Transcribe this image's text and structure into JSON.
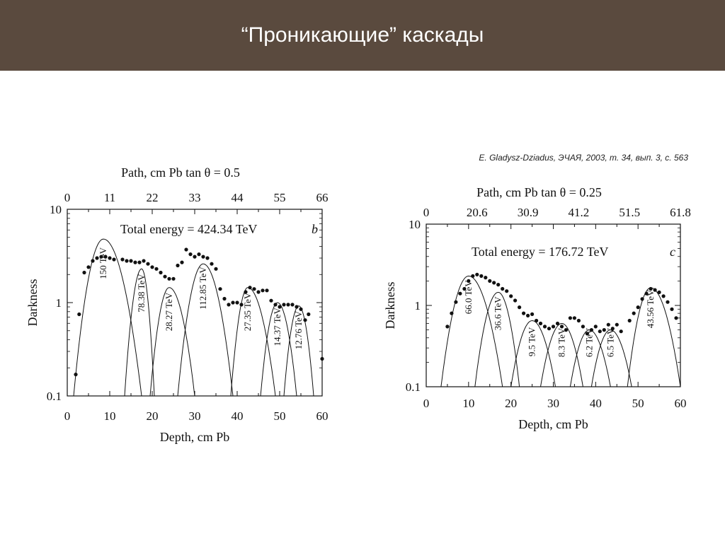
{
  "slide": {
    "title": "“Проникающие” каскады",
    "citation": "E. Gladysz-Dziadus, ЭЧАЯ, 2003, т. 34, вып. 3, с. 563"
  },
  "colors": {
    "header_bg": "#5a4a3e",
    "header_text": "#ffffff",
    "plot_ink": "#111111"
  },
  "chart_data": [
    {
      "type": "scatter",
      "panel_label": "b",
      "annotation": "Total energy = 424.34 TeV",
      "xlabel": "Depth, cm Pb",
      "ylabel": "Darkness",
      "top_axis_label": "Path, cm Pb   tan θ = 0.5",
      "xlim": [
        0,
        60
      ],
      "ylim": [
        0.1,
        10
      ],
      "y_scale": "log",
      "x_ticks": [
        "0",
        "10",
        "20",
        "30",
        "40",
        "50",
        "60"
      ],
      "top_ticks": [
        "0",
        "11",
        "22",
        "33",
        "44",
        "55",
        "66"
      ],
      "y_ticks": [
        "0.1",
        "1",
        "10"
      ],
      "points": [
        [
          2,
          0.17
        ],
        [
          2.8,
          0.75
        ],
        [
          4,
          2.1
        ],
        [
          5,
          2.4
        ],
        [
          6,
          2.8
        ],
        [
          7,
          3.0
        ],
        [
          8,
          3.1
        ],
        [
          9,
          3.1
        ],
        [
          10,
          3.0
        ],
        [
          11,
          2.9
        ],
        [
          13,
          2.9
        ],
        [
          14,
          2.8
        ],
        [
          15,
          2.8
        ],
        [
          16,
          2.7
        ],
        [
          17,
          2.7
        ],
        [
          18,
          2.8
        ],
        [
          19,
          2.6
        ],
        [
          20,
          2.4
        ],
        [
          21,
          2.3
        ],
        [
          22,
          2.1
        ],
        [
          23,
          1.9
        ],
        [
          24,
          1.8
        ],
        [
          25,
          1.8
        ],
        [
          26,
          2.5
        ],
        [
          27,
          2.7
        ],
        [
          28,
          3.7
        ],
        [
          29,
          3.3
        ],
        [
          30,
          3.1
        ],
        [
          31,
          3.3
        ],
        [
          32,
          3.1
        ],
        [
          33,
          3.0
        ],
        [
          34,
          2.6
        ],
        [
          35,
          2.3
        ],
        [
          36,
          1.4
        ],
        [
          37,
          1.1
        ],
        [
          38,
          0.95
        ],
        [
          39,
          1.0
        ],
        [
          40,
          1.0
        ],
        [
          41,
          0.95
        ],
        [
          42,
          1.3
        ],
        [
          43,
          1.45
        ],
        [
          44,
          1.4
        ],
        [
          45,
          1.3
        ],
        [
          46,
          1.35
        ],
        [
          47,
          1.35
        ],
        [
          48,
          1.05
        ],
        [
          49,
          0.95
        ],
        [
          50,
          0.9
        ],
        [
          51,
          0.95
        ],
        [
          52,
          0.95
        ],
        [
          53,
          0.95
        ],
        [
          54,
          0.9
        ],
        [
          55,
          0.85
        ],
        [
          56,
          0.65
        ],
        [
          56.8,
          0.75
        ],
        [
          60,
          0.25
        ]
      ],
      "showers": [
        {
          "label": "150 TeV",
          "peak_x": 8.5,
          "peak_y": 4.8,
          "start": 1.5,
          "end": 17.5
        },
        {
          "label": "78.38 TeV",
          "peak_x": 17.5,
          "peak_y": 2.3,
          "start": 13.5,
          "end": 20.5
        },
        {
          "label": "28.27 TeV",
          "peak_x": 24,
          "peak_y": 1.45,
          "start": 19.5,
          "end": 30
        },
        {
          "label": "112.85 TeV",
          "peak_x": 32,
          "peak_y": 2.6,
          "start": 26,
          "end": 39
        },
        {
          "label": "27.35 TeV",
          "peak_x": 42.5,
          "peak_y": 1.45,
          "start": 38.5,
          "end": 49
        },
        {
          "label": "14.37 TeV",
          "peak_x": 49.5,
          "peak_y": 1.0,
          "start": 45.5,
          "end": 54
        },
        {
          "label": "12.76 TeV",
          "peak_x": 54.5,
          "peak_y": 0.92,
          "start": 51,
          "end": 58
        }
      ]
    },
    {
      "type": "scatter",
      "panel_label": "c",
      "annotation": "Total energy = 176.72 TeV",
      "xlabel": "Depth, cm Pb",
      "ylabel": "Darkness",
      "top_axis_label": "Path, cm Pb   tan θ = 0.25",
      "xlim": [
        0,
        60
      ],
      "ylim": [
        0.1,
        10
      ],
      "y_scale": "log",
      "x_ticks": [
        "0",
        "10",
        "20",
        "30",
        "40",
        "50",
        "60"
      ],
      "top_ticks": [
        "0",
        "20.6",
        "30.9",
        "41.2",
        "51.5",
        "61.8"
      ],
      "y_ticks": [
        "0.1",
        "1",
        "10"
      ],
      "points": [
        [
          5,
          0.55
        ],
        [
          6,
          0.8
        ],
        [
          7,
          1.1
        ],
        [
          8,
          1.4
        ],
        [
          9,
          1.6
        ],
        [
          10,
          2.0
        ],
        [
          11,
          2.3
        ],
        [
          12,
          2.4
        ],
        [
          13,
          2.3
        ],
        [
          14,
          2.2
        ],
        [
          15,
          2.0
        ],
        [
          16,
          1.9
        ],
        [
          17,
          1.8
        ],
        [
          18,
          1.6
        ],
        [
          19,
          1.5
        ],
        [
          20,
          1.3
        ],
        [
          21,
          1.15
        ],
        [
          22,
          0.95
        ],
        [
          23,
          0.8
        ],
        [
          24,
          0.75
        ],
        [
          25,
          0.78
        ],
        [
          26,
          0.65
        ],
        [
          27,
          0.6
        ],
        [
          28,
          0.55
        ],
        [
          29,
          0.52
        ],
        [
          30,
          0.55
        ],
        [
          31,
          0.6
        ],
        [
          32,
          0.55
        ],
        [
          33,
          0.5
        ],
        [
          34,
          0.7
        ],
        [
          35,
          0.7
        ],
        [
          36,
          0.65
        ],
        [
          37,
          0.55
        ],
        [
          38,
          0.45
        ],
        [
          39,
          0.5
        ],
        [
          40,
          0.55
        ],
        [
          41,
          0.48
        ],
        [
          42,
          0.5
        ],
        [
          43,
          0.58
        ],
        [
          44,
          0.52
        ],
        [
          45,
          0.58
        ],
        [
          46,
          0.48
        ],
        [
          48,
          0.65
        ],
        [
          49,
          0.8
        ],
        [
          50,
          0.95
        ],
        [
          51,
          1.2
        ],
        [
          52,
          1.4
        ],
        [
          53,
          1.6
        ],
        [
          54,
          1.55
        ],
        [
          55,
          1.45
        ],
        [
          56,
          1.3
        ],
        [
          57,
          1.1
        ],
        [
          58,
          0.9
        ],
        [
          59,
          0.7
        ]
      ],
      "showers": [
        {
          "label": "66.0 TeV",
          "peak_x": 10,
          "peak_y": 2.3,
          "start": 3.5,
          "end": 18
        },
        {
          "label": "36.6 TeV",
          "peak_x": 17,
          "peak_y": 1.45,
          "start": 11.5,
          "end": 22
        },
        {
          "label": "9.5 TeV",
          "peak_x": 25,
          "peak_y": 0.65,
          "start": 20,
          "end": 30.5
        },
        {
          "label": "8.3 TeV",
          "peak_x": 32,
          "peak_y": 0.6,
          "start": 27,
          "end": 37
        },
        {
          "label": "6.2 TeV",
          "peak_x": 38.5,
          "peak_y": 0.5,
          "start": 34,
          "end": 43.5
        },
        {
          "label": "6.5 TeV",
          "peak_x": 43.5,
          "peak_y": 0.5,
          "start": 39,
          "end": 48.5
        },
        {
          "label": "43.56 TeV",
          "peak_x": 53,
          "peak_y": 1.65,
          "start": 47.5,
          "end": 60
        }
      ]
    }
  ]
}
